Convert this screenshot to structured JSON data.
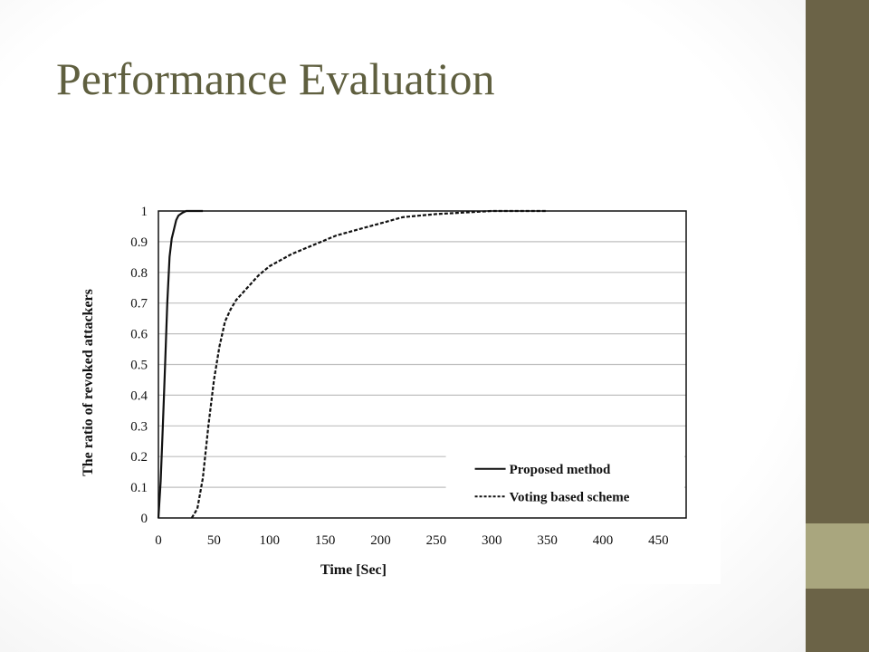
{
  "slide": {
    "title": "Performance Evaluation",
    "colors": {
      "title": "#5f5f3f",
      "sidebar_dark": "#6b6347",
      "sidebar_light": "#a9a67e",
      "plot_line": "#111111",
      "gridline": "#bfbfbf"
    }
  },
  "chart_data": {
    "type": "line",
    "title": "",
    "xlabel": "Time [Sec]",
    "ylabel": "The ratio of revoked attackers",
    "xlim": [
      0,
      475
    ],
    "ylim": [
      0,
      1
    ],
    "xticks": [
      0,
      50,
      100,
      150,
      200,
      250,
      300,
      350,
      400,
      450
    ],
    "yticks": [
      0,
      0.1,
      0.2,
      0.3,
      0.4,
      0.5,
      0.6,
      0.7,
      0.8,
      0.9,
      1
    ],
    "ytick_labels": [
      "0",
      "0.1",
      "0.2",
      "0.3",
      "0.4",
      "0.5",
      "0.6",
      "0.7",
      "0.8",
      "0.9",
      "1"
    ],
    "grid": "horizontal",
    "legend_position": "bottom-right",
    "series": [
      {
        "name": "Proposed method",
        "style": "solid",
        "x": [
          0,
          2,
          4,
          6,
          8,
          10,
          12,
          14,
          16,
          18,
          20,
          22,
          25,
          30,
          40
        ],
        "y": [
          0,
          0.12,
          0.3,
          0.5,
          0.7,
          0.85,
          0.91,
          0.94,
          0.97,
          0.985,
          0.99,
          0.995,
          1,
          1,
          1
        ]
      },
      {
        "name": "Voting based scheme",
        "style": "dashed",
        "x": [
          30,
          35,
          40,
          45,
          50,
          55,
          60,
          65,
          70,
          80,
          90,
          100,
          120,
          140,
          160,
          180,
          200,
          220,
          250,
          300,
          350
        ],
        "y": [
          0,
          0.03,
          0.13,
          0.3,
          0.45,
          0.56,
          0.64,
          0.68,
          0.71,
          0.75,
          0.79,
          0.82,
          0.86,
          0.89,
          0.92,
          0.94,
          0.96,
          0.98,
          0.99,
          1,
          1
        ]
      }
    ]
  }
}
